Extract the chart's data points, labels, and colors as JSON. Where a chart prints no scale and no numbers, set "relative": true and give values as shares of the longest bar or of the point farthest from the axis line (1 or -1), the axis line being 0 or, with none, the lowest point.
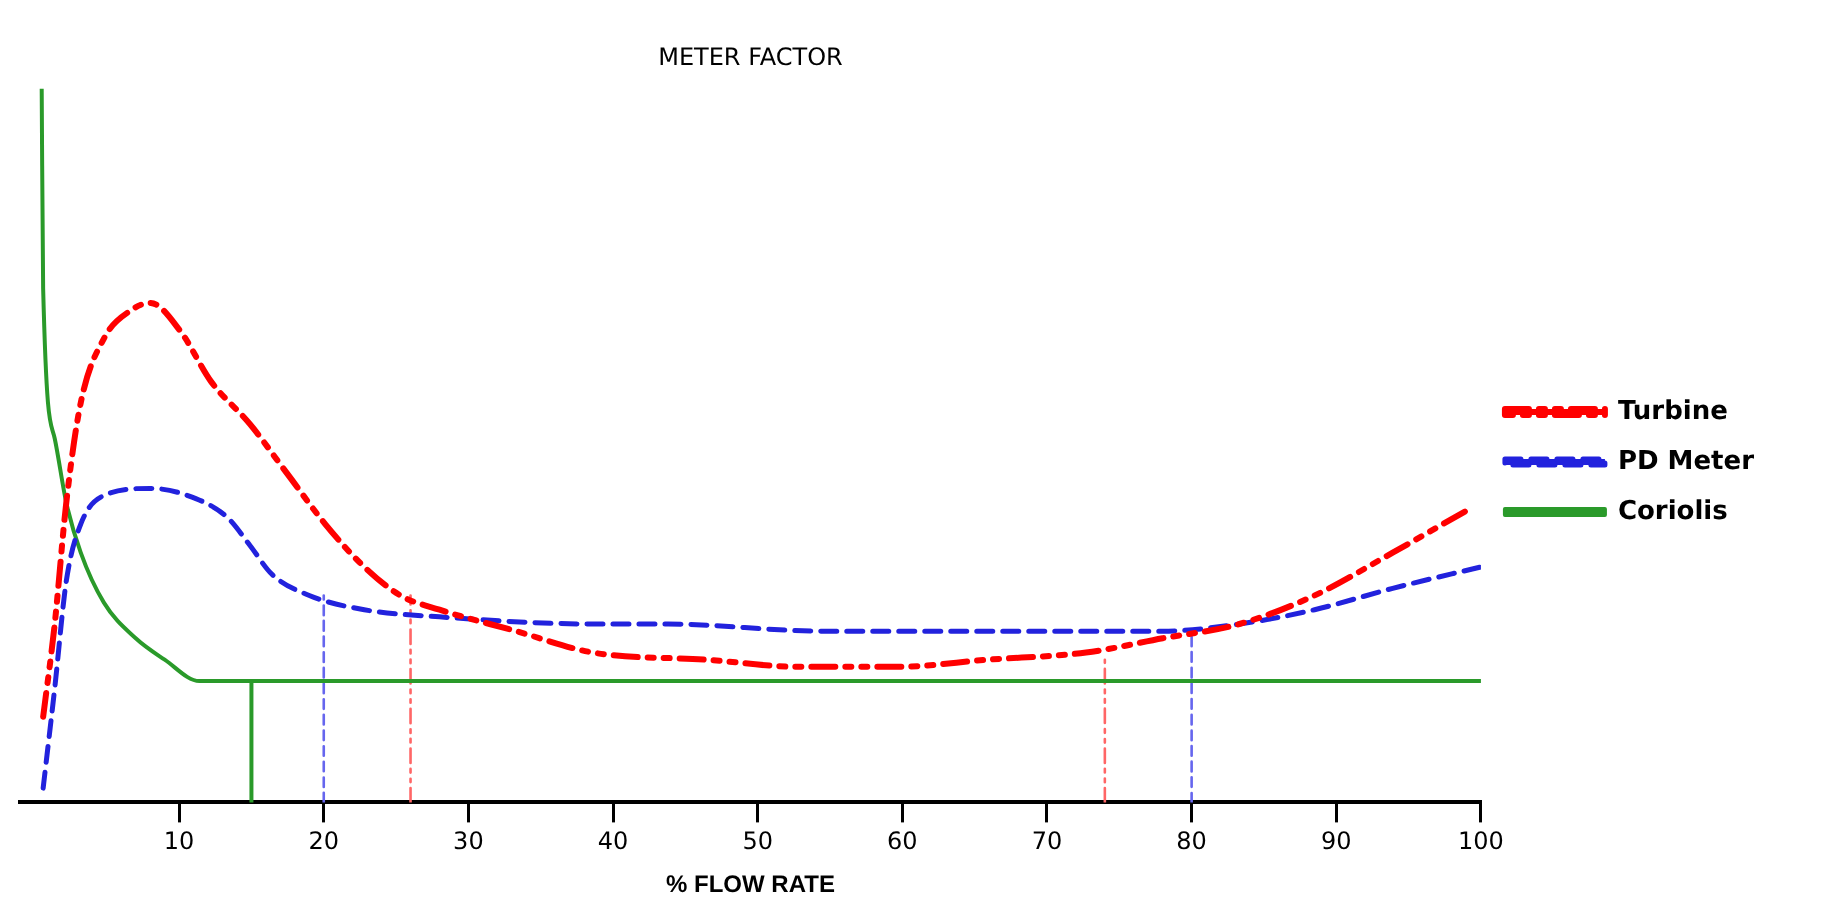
{
  "chart_data": {
    "type": "line",
    "title": "METER FACTOR",
    "xlabel": "% FLOW RATE",
    "relative": true,
    "legend": "right",
    "grid": false,
    "marker": "none",
    "xlim": [
      -1,
      100
    ],
    "xticks": [
      10,
      20,
      30,
      40,
      50,
      60,
      70,
      80,
      90,
      100
    ],
    "series": [
      {
        "name": "Turbine",
        "color": "#ff0000",
        "line_style": "dashdot",
        "x": [
          0.6,
          1.4,
          2.2,
          3.2,
          4.8,
          6.7,
          8,
          10.1,
          12.2,
          14.9,
          17.5,
          20.1,
          22.8,
          25.3,
          28,
          33.3,
          38.6,
          46.5,
          52.8,
          59.6,
          65.9,
          72.7,
          78,
          83.3,
          88.5,
          93.9,
          99.1
        ],
        "values": [
          0.12,
          0.25,
          0.42,
          0.56,
          0.65,
          0.69,
          0.7,
          0.66,
          0.59,
          0.53,
          0.46,
          0.39,
          0.33,
          0.29,
          0.27,
          0.24,
          0.21,
          0.2,
          0.19,
          0.19,
          0.2,
          0.21,
          0.23,
          0.25,
          0.29,
          0.35,
          0.41
        ]
      },
      {
        "name": "PD Meter",
        "color": "#2222dd",
        "line_style": "dashed",
        "x": [
          0.6,
          1.4,
          2.2,
          3.2,
          4.8,
          8,
          10.6,
          13.3,
          14.9,
          16.4,
          19,
          22.8,
          28,
          38.6,
          43.8,
          54.4,
          64.8,
          72.7,
          78,
          83.3,
          88.5,
          93.9,
          100
        ],
        "values": [
          0.02,
          0.16,
          0.31,
          0.39,
          0.43,
          0.44,
          0.43,
          0.4,
          0.36,
          0.32,
          0.29,
          0.27,
          0.26,
          0.25,
          0.25,
          0.24,
          0.24,
          0.24,
          0.24,
          0.25,
          0.27,
          0.3,
          0.33
        ]
      },
      {
        "name": "Coriolis",
        "color": "#2a9a2a",
        "line_style": "solid",
        "x": [
          0.5,
          0.6,
          1.4,
          2.2,
          3.2,
          4.8,
          7,
          9,
          11.4,
          15.4,
          30,
          50,
          70,
          100
        ],
        "values": [
          1,
          0.72,
          0.51,
          0.42,
          0.35,
          0.28,
          0.23,
          0.2,
          0.17,
          0.17,
          0.17,
          0.17,
          0.17,
          0.17
        ]
      },
      {
        "color": "#2a9a2a",
        "line_style": "solid",
        "x": [
          15,
          15
        ],
        "values": [
          0,
          0.17
        ]
      },
      {
        "color": "#6666ee",
        "line_style": "dashed",
        "x": [
          20,
          20
        ],
        "values": [
          0,
          0.29
        ]
      },
      {
        "color": "#ff6666",
        "line_style": "dashdot",
        "x": [
          26,
          26
        ],
        "values": [
          0,
          0.29
        ]
      },
      {
        "color": "#ff6666",
        "line_style": "dashdot",
        "x": [
          74,
          74
        ],
        "values": [
          0,
          0.2
        ]
      },
      {
        "color": "#6666ee",
        "line_style": "dashed",
        "x": [
          80,
          80
        ],
        "values": [
          0,
          0.24
        ]
      }
    ]
  }
}
